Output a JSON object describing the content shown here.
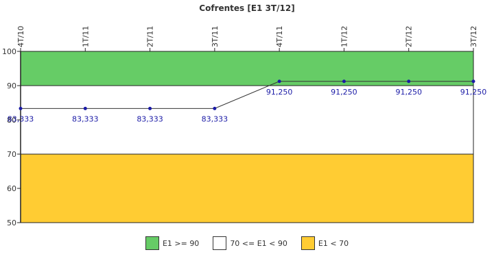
{
  "chart_data": {
    "type": "line",
    "title": "Cofrentes [E1 3T/12]",
    "categories": [
      "4T/10",
      "1T/11",
      "2T/11",
      "3T/11",
      "4T/11",
      "1T/12",
      "2T/12",
      "3T/12"
    ],
    "series": [
      {
        "values": [
          83.333,
          83.333,
          83.333,
          83.333,
          91.25,
          91.25,
          91.25,
          91.25
        ],
        "labels": [
          "83,333",
          "83,333",
          "83,333",
          "83,333",
          "91,250",
          "91,250",
          "91,250",
          "91,250"
        ],
        "color": "#1a1aa6"
      }
    ],
    "ylim": [
      50,
      100
    ],
    "yticks": [
      "50",
      "60",
      "70",
      "80",
      "90",
      "100"
    ],
    "bands": [
      {
        "from": 90,
        "to": 100,
        "color": "#66cc66",
        "label": "E1 >= 90"
      },
      {
        "from": 70,
        "to": 90,
        "color": "#ffffff",
        "label": "70 <= E1 < 90"
      },
      {
        "from": 50,
        "to": 70,
        "color": "#ffcc33",
        "label": "E1 < 70"
      }
    ],
    "legend_position": "bottom"
  }
}
